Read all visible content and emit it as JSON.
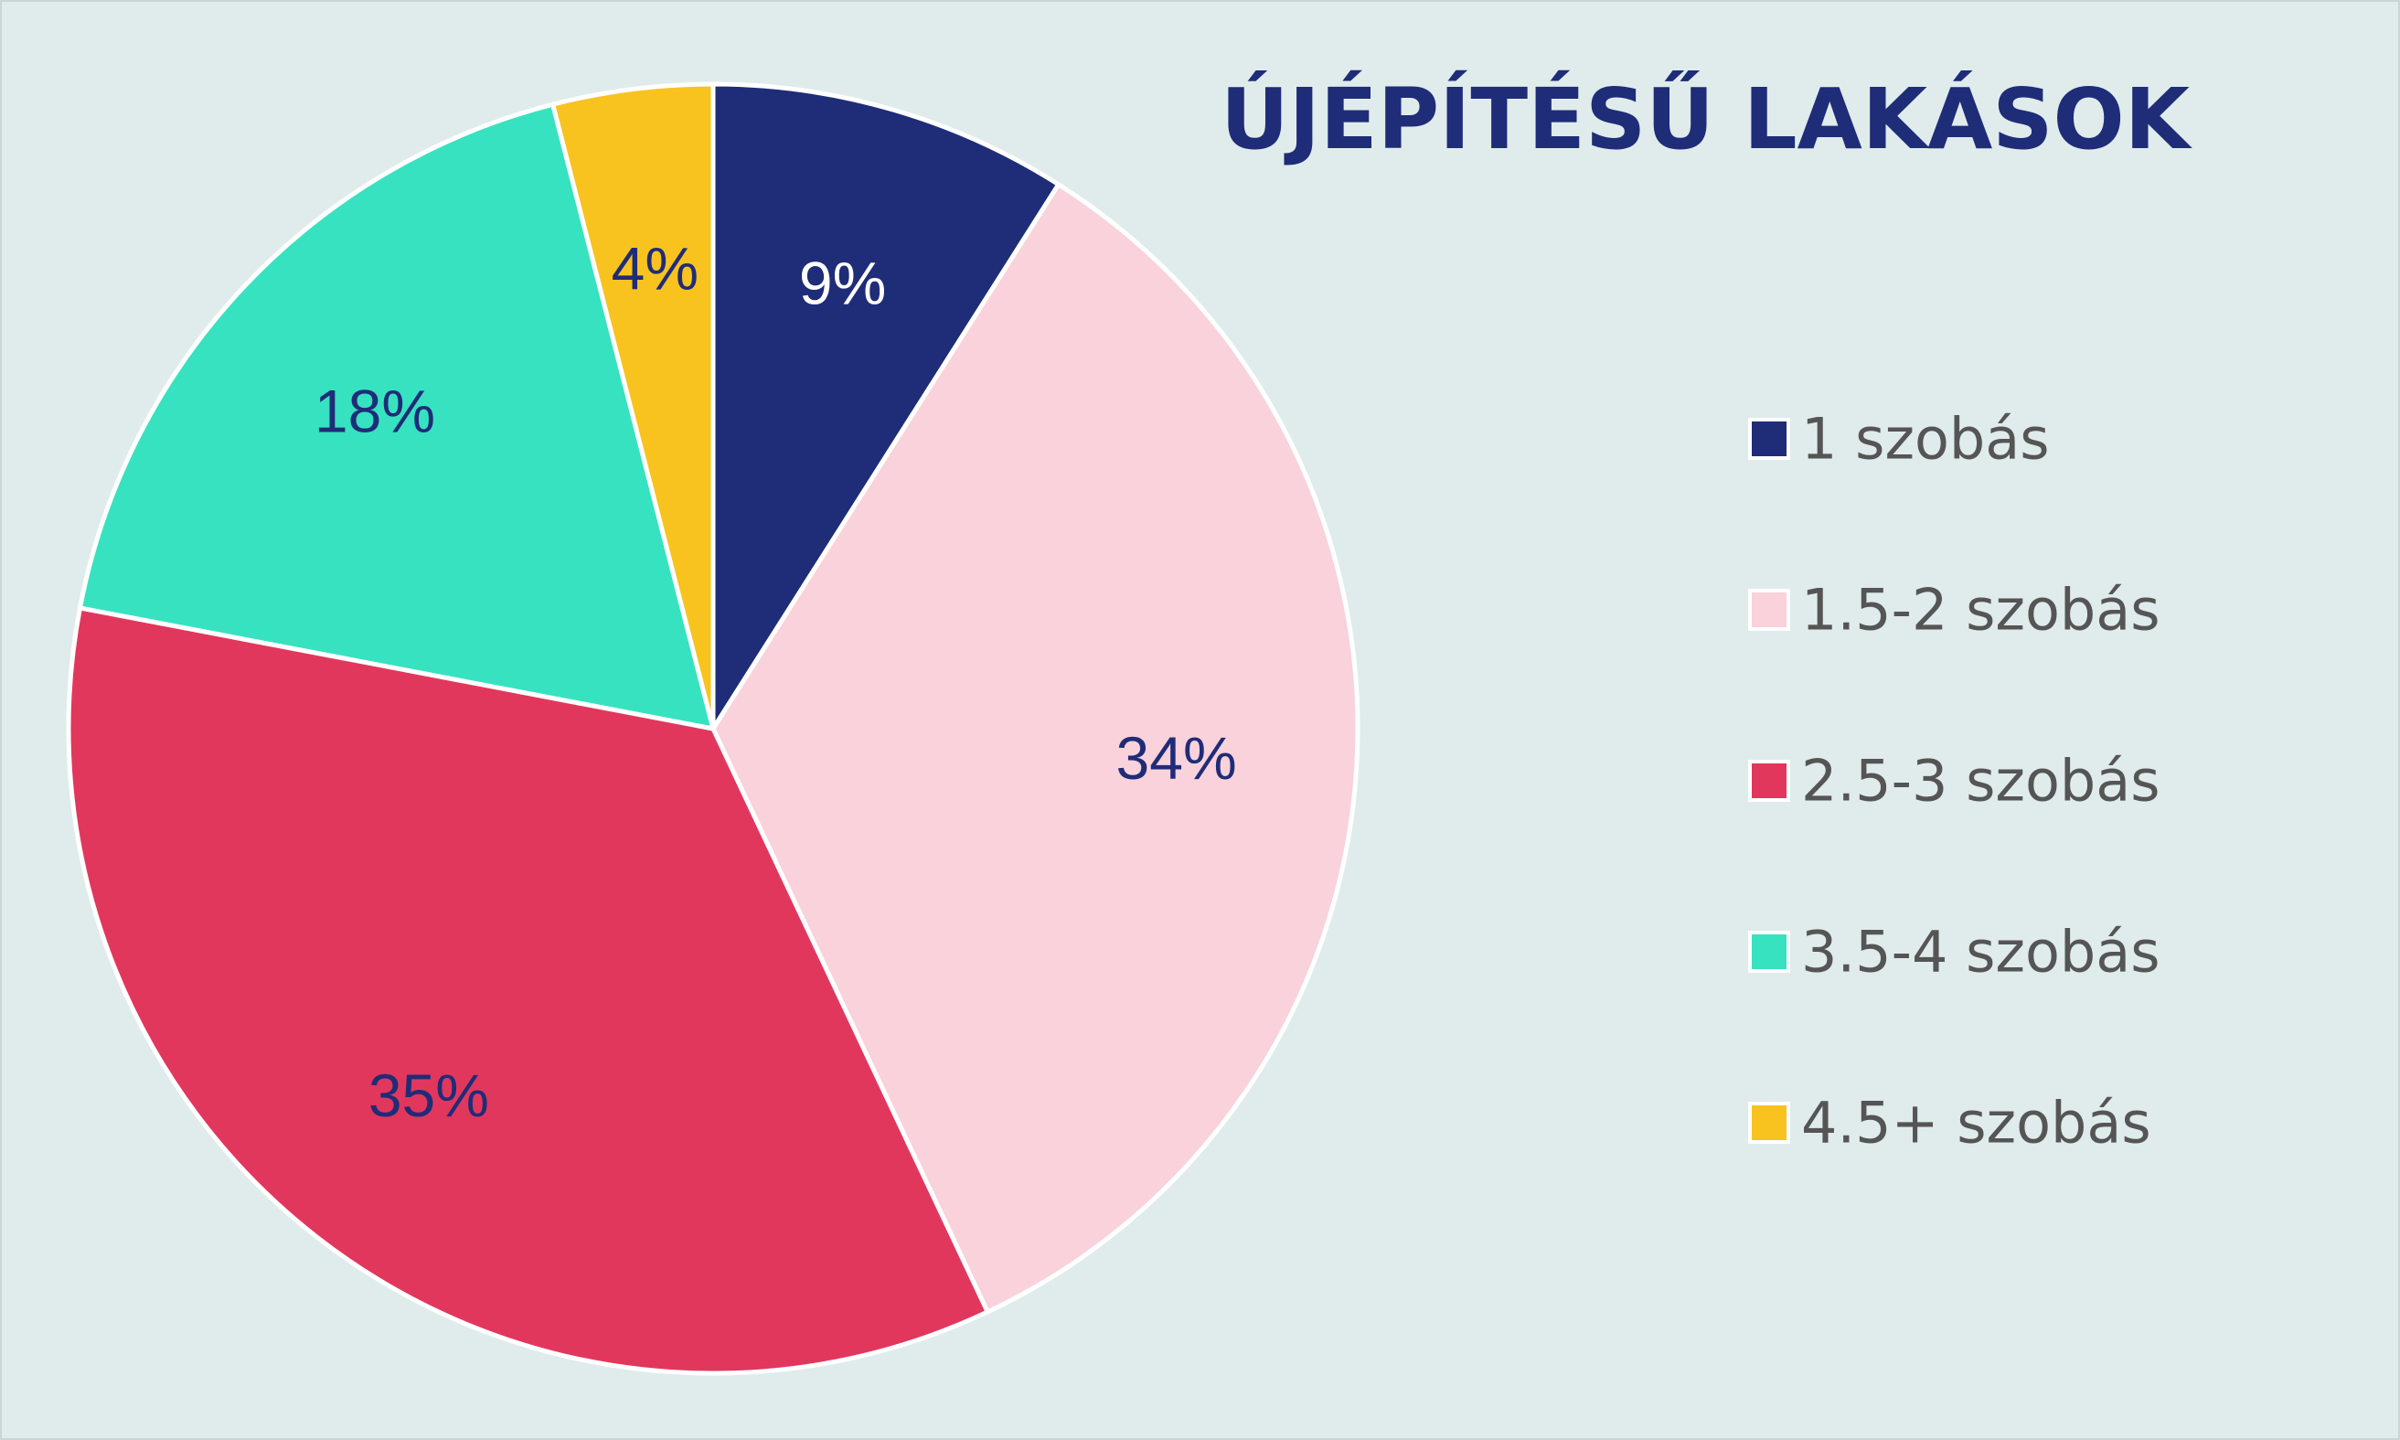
{
  "chart_data": {
    "type": "pie",
    "title": "ÚJÉPÍTÉSŰ LAKÁSOK",
    "categories": [
      "1 szobás",
      "1.5-2 szobás",
      "2.5-3 szobás",
      "3.5-4 szobás",
      "4.5+ szobás"
    ],
    "values": [
      9,
      34,
      35,
      18,
      4
    ],
    "data_labels": [
      "9%",
      "34%",
      "35%",
      "18%",
      "4%"
    ],
    "colors": [
      "#1f2c78",
      "#f9d2db",
      "#e2375d",
      "#37e2c0",
      "#f8c31f"
    ],
    "label_colors": [
      "#ffffff",
      "#1f2c78",
      "#1f2c78",
      "#1f2c78",
      "#1f2c78"
    ],
    "title_color": "#1f2c78",
    "legend_text_color": "#555555",
    "legend_position": "right",
    "start_angle": "12 o'clock",
    "direction": "clockwise"
  }
}
